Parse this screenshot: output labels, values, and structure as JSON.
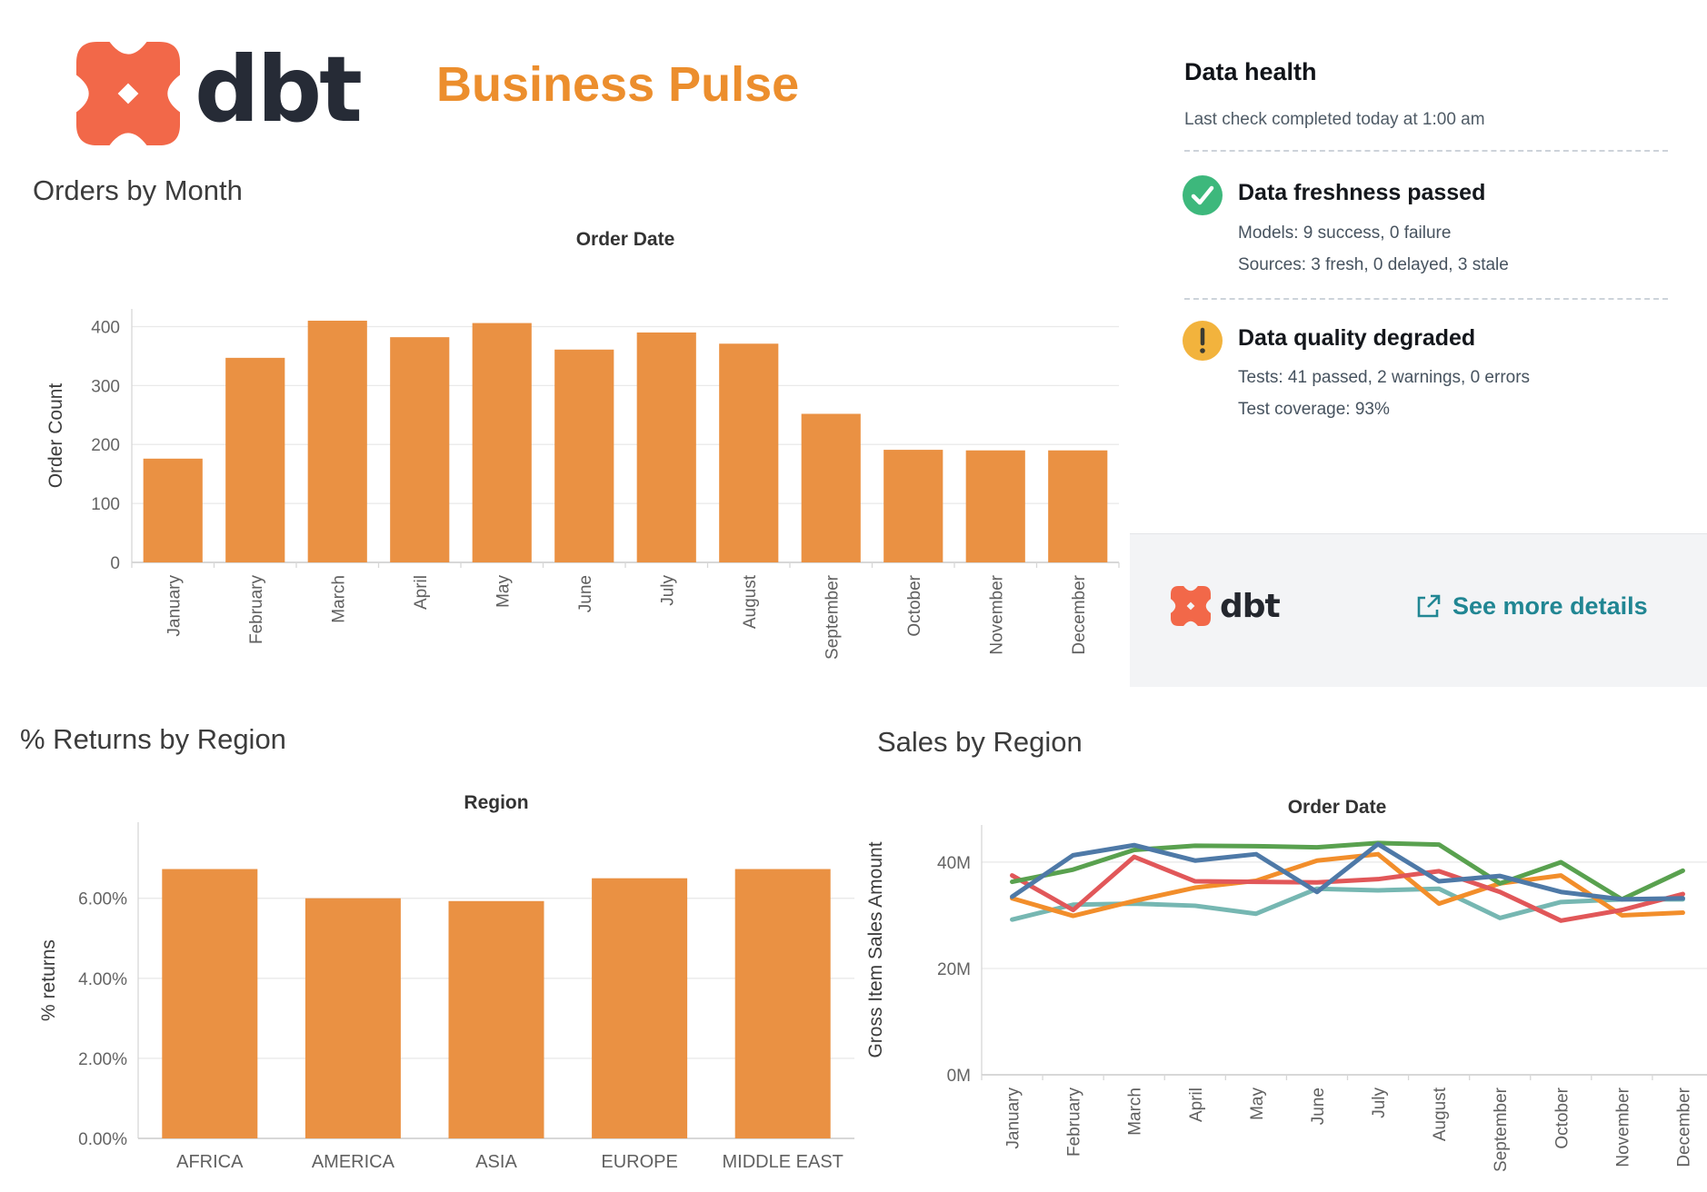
{
  "header": {
    "brand": "dbt",
    "title": "Business Pulse"
  },
  "colors": {
    "logo_orange": "#F26849",
    "title_orange": "#EC8E2D",
    "bar_orange": "#EA9143",
    "link_teal": "#218693",
    "success_green": "#3DB87C",
    "warning_yellow": "#F2B33D"
  },
  "data_health": {
    "title": "Data health",
    "subtitle": "Last check completed today at 1:00 am",
    "items": [
      {
        "icon": "check",
        "color": "#3DB87C",
        "title": "Data freshness passed",
        "lines": [
          "Models: 9 success, 0 failure",
          "Sources: 3 fresh, 0 delayed, 3 stale"
        ]
      },
      {
        "icon": "exclamation",
        "color": "#F2B33D",
        "title": "Data quality degraded",
        "lines": [
          "Tests: 41 passed, 2 warnings, 0 errors",
          "Test coverage: 93%"
        ]
      }
    ],
    "footer": {
      "brand": "dbt",
      "link_label": "See more details"
    }
  },
  "chart_data": [
    {
      "id": "orders_by_month",
      "type": "bar",
      "title": "Orders by Month",
      "pane_title": "Order Date",
      "ylabel": "Order Count",
      "ylim": [
        0,
        430
      ],
      "grid": true,
      "legend_position": "none",
      "bar_color": "#EA9143",
      "yticks": [
        {
          "v": 0,
          "label": "0"
        },
        {
          "v": 100,
          "label": "100"
        },
        {
          "v": 200,
          "label": "200"
        },
        {
          "v": 300,
          "label": "300"
        },
        {
          "v": 400,
          "label": "400"
        }
      ],
      "categories": [
        "January",
        "February",
        "March",
        "April",
        "May",
        "June",
        "July",
        "August",
        "September",
        "October",
        "November",
        "December"
      ],
      "values": [
        176,
        347,
        410,
        382,
        406,
        361,
        390,
        371,
        252,
        191,
        190,
        190
      ]
    },
    {
      "id": "returns_by_region",
      "type": "bar",
      "title": "% Returns by Region",
      "pane_title": "Region",
      "ylabel": "% returns",
      "ylim": [
        0,
        7.9
      ],
      "grid": true,
      "legend_position": "none",
      "bar_color": "#EA9143",
      "yticks": [
        {
          "v": 0,
          "label": "0.00%"
        },
        {
          "v": 2,
          "label": "2.00%"
        },
        {
          "v": 4,
          "label": "4.00%"
        },
        {
          "v": 6,
          "label": "6.00%"
        }
      ],
      "categories": [
        "AFRICA",
        "AMERICA",
        "ASIA",
        "EUROPE",
        "MIDDLE EAST"
      ],
      "values": [
        6.73,
        6.0,
        5.93,
        6.5,
        6.73
      ]
    },
    {
      "id": "sales_by_region",
      "type": "line",
      "title": "Sales by Region",
      "pane_title": "Order Date",
      "ylabel": "Gross Item Sales Amount",
      "ylim": [
        0,
        47
      ],
      "unit": "millions",
      "grid": true,
      "legend_position": "none",
      "yticks": [
        {
          "v": 0,
          "label": "0M"
        },
        {
          "v": 20,
          "label": "20M"
        },
        {
          "v": 40,
          "label": "40M"
        }
      ],
      "categories": [
        "January",
        "February",
        "March",
        "April",
        "May",
        "June",
        "July",
        "August",
        "September",
        "October",
        "November",
        "December"
      ],
      "series": [
        {
          "name": "blue",
          "color": "#4E79A7",
          "values": [
            33.5,
            41.3,
            43.2,
            40.3,
            41.5,
            34.4,
            43.4,
            36.4,
            37.4,
            34.4,
            33.0,
            33.2
          ]
        },
        {
          "name": "green",
          "color": "#59A14F",
          "values": [
            36.3,
            38.6,
            42.3,
            43.1,
            43.0,
            42.8,
            43.6,
            43.3,
            36.0,
            40.0,
            33.0,
            38.4
          ]
        },
        {
          "name": "red",
          "color": "#E15759",
          "values": [
            37.5,
            31.0,
            41.0,
            36.4,
            36.3,
            36.2,
            36.8,
            38.3,
            34.4,
            29.0,
            31.0,
            34.0
          ]
        },
        {
          "name": "orange",
          "color": "#F28E2B",
          "values": [
            33.2,
            29.9,
            32.7,
            35.2,
            36.5,
            40.3,
            41.5,
            32.2,
            36.0,
            37.5,
            30.0,
            30.5
          ]
        },
        {
          "name": "teal",
          "color": "#76B7B2",
          "values": [
            29.2,
            32.0,
            32.2,
            31.8,
            30.3,
            35.0,
            34.7,
            35.0,
            29.5,
            32.5,
            33.0,
            33.0
          ]
        }
      ]
    }
  ]
}
